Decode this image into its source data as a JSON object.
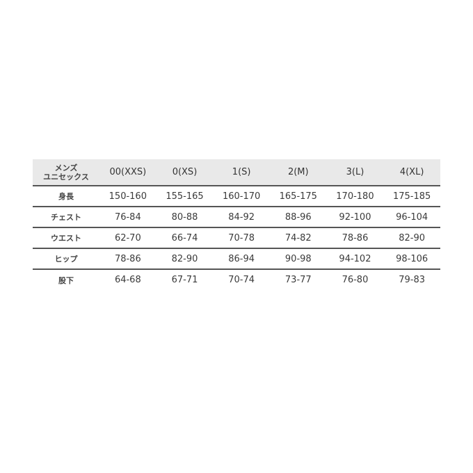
{
  "table": {
    "corner_line1": "メンズ",
    "corner_line2": "ユニセックス",
    "sizes": [
      "00(XXS)",
      "0(XS)",
      "1(S)",
      "2(M)",
      "3(L)",
      "4(XL)"
    ],
    "rows": [
      {
        "label": "身長",
        "values": [
          "150-160",
          "155-165",
          "160-170",
          "165-175",
          "170-180",
          "175-185"
        ]
      },
      {
        "label": "チェスト",
        "values": [
          "76-84",
          "80-88",
          "84-92",
          "88-96",
          "92-100",
          "96-104"
        ]
      },
      {
        "label": "ウエスト",
        "values": [
          "62-70",
          "66-74",
          "70-78",
          "74-82",
          "78-86",
          "82-90"
        ]
      },
      {
        "label": "ヒップ",
        "values": [
          "78-86",
          "82-90",
          "86-94",
          "90-98",
          "94-102",
          "98-106"
        ]
      },
      {
        "label": "股下",
        "values": [
          "64-68",
          "67-71",
          "70-74",
          "73-77",
          "76-80",
          "79-83"
        ]
      }
    ]
  }
}
